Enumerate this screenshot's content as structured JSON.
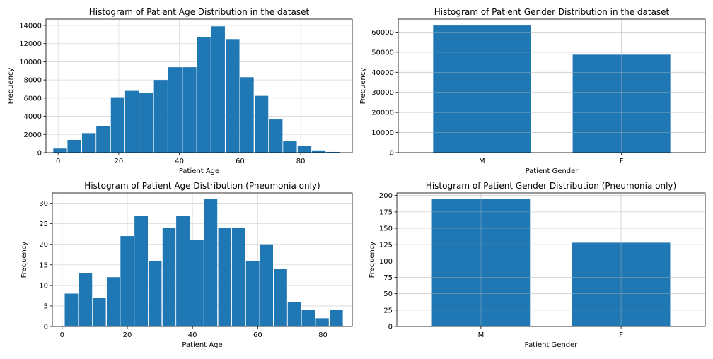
{
  "chart_data": [
    {
      "type": "bar",
      "title": "Histogram of Patient Age Distribution in the dataset",
      "xlabel": "Patient Age",
      "ylabel": "Frequency",
      "xlim": [
        -4,
        97
      ],
      "ylim": [
        0,
        14700
      ],
      "xticks": [
        0,
        20,
        40,
        60,
        80
      ],
      "yticks": [
        0,
        2000,
        4000,
        6000,
        8000,
        10000,
        12000,
        14000
      ],
      "grid": true,
      "color": "#1f77b4",
      "bins": [
        {
          "start": -1.6,
          "end": 2.9,
          "value": 450
        },
        {
          "start": 3.1,
          "end": 7.6,
          "value": 1400
        },
        {
          "start": 7.9,
          "end": 12.4,
          "value": 2150
        },
        {
          "start": 12.6,
          "end": 17.1,
          "value": 2950
        },
        {
          "start": 17.4,
          "end": 21.9,
          "value": 6100
        },
        {
          "start": 22.1,
          "end": 26.6,
          "value": 6800
        },
        {
          "start": 26.8,
          "end": 31.3,
          "value": 6600
        },
        {
          "start": 31.6,
          "end": 36.1,
          "value": 8000
        },
        {
          "start": 36.3,
          "end": 40.8,
          "value": 9400
        },
        {
          "start": 41.1,
          "end": 45.6,
          "value": 9400
        },
        {
          "start": 45.8,
          "end": 50.3,
          "value": 12700
        },
        {
          "start": 50.5,
          "end": 55.0,
          "value": 13900
        },
        {
          "start": 55.3,
          "end": 59.8,
          "value": 12500
        },
        {
          "start": 60.0,
          "end": 64.5,
          "value": 8300
        },
        {
          "start": 64.8,
          "end": 69.3,
          "value": 6250
        },
        {
          "start": 69.5,
          "end": 74.0,
          "value": 3650
        },
        {
          "start": 74.2,
          "end": 78.7,
          "value": 1300
        },
        {
          "start": 79.0,
          "end": 83.5,
          "value": 700
        },
        {
          "start": 83.7,
          "end": 88.2,
          "value": 250
        },
        {
          "start": 88.4,
          "end": 92.9,
          "value": 80
        }
      ]
    },
    {
      "type": "bar",
      "title": "Histogram of Patient Gender Distribution in the dataset",
      "xlabel": "Patient Gender",
      "ylabel": "Frequency",
      "categories": [
        "M",
        "F"
      ],
      "values": [
        63300,
        48800
      ],
      "ylim": [
        0,
        66500
      ],
      "yticks": [
        0,
        10000,
        20000,
        30000,
        40000,
        50000,
        60000
      ],
      "grid": true,
      "color": "#1f77b4"
    },
    {
      "type": "bar",
      "title": "Histogram of Patient Age Distribution (Pneumonia only)",
      "xlabel": "Patient Age",
      "ylabel": "Frequency",
      "xlim": [
        -3,
        89
      ],
      "ylim": [
        0,
        32.5
      ],
      "xticks": [
        0,
        20,
        40,
        60,
        80
      ],
      "yticks": [
        0,
        5,
        10,
        15,
        20,
        25,
        30
      ],
      "grid": true,
      "color": "#1f77b4",
      "bins": [
        {
          "start": 0.8,
          "end": 4.9,
          "value": 8
        },
        {
          "start": 5.1,
          "end": 9.2,
          "value": 13
        },
        {
          "start": 9.4,
          "end": 13.4,
          "value": 7
        },
        {
          "start": 13.7,
          "end": 17.7,
          "value": 12
        },
        {
          "start": 17.9,
          "end": 22.0,
          "value": 22
        },
        {
          "start": 22.2,
          "end": 26.3,
          "value": 27
        },
        {
          "start": 26.5,
          "end": 30.5,
          "value": 16
        },
        {
          "start": 30.8,
          "end": 34.8,
          "value": 24
        },
        {
          "start": 35.0,
          "end": 39.1,
          "value": 27
        },
        {
          "start": 39.3,
          "end": 43.4,
          "value": 21
        },
        {
          "start": 43.6,
          "end": 47.6,
          "value": 31
        },
        {
          "start": 47.9,
          "end": 51.9,
          "value": 24
        },
        {
          "start": 52.1,
          "end": 56.2,
          "value": 24
        },
        {
          "start": 56.4,
          "end": 60.5,
          "value": 16
        },
        {
          "start": 60.7,
          "end": 64.7,
          "value": 20
        },
        {
          "start": 65.0,
          "end": 69.0,
          "value": 14
        },
        {
          "start": 69.2,
          "end": 73.3,
          "value": 6
        },
        {
          "start": 73.5,
          "end": 77.6,
          "value": 4
        },
        {
          "start": 77.8,
          "end": 81.8,
          "value": 2
        },
        {
          "start": 82.1,
          "end": 86.1,
          "value": 4
        }
      ]
    },
    {
      "type": "bar",
      "title": "Histogram of Patient Gender Distribution (Pneumonia only)",
      "xlabel": "Patient Gender",
      "ylabel": "Frequency",
      "categories": [
        "M",
        "F"
      ],
      "values": [
        195,
        128
      ],
      "ylim": [
        0,
        204
      ],
      "yticks": [
        0,
        25,
        50,
        75,
        100,
        125,
        150,
        175,
        200
      ],
      "grid": true,
      "color": "#1f77b4"
    }
  ]
}
